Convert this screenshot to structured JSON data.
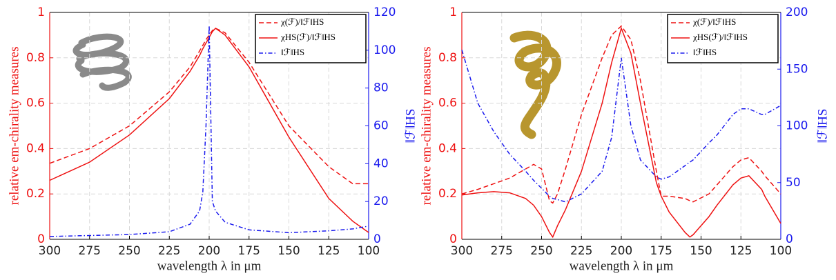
{
  "chart_data": [
    {
      "type": "line",
      "xlabel": "wavelength λ in μm",
      "ylabel": "relative em-chirality measures",
      "y2label": "‖ℱ‖HS",
      "x": [
        300,
        275,
        250,
        225,
        212,
        206,
        204,
        202,
        200,
        198,
        196,
        190,
        175,
        150,
        125,
        110,
        100
      ],
      "xlim": [
        300,
        100
      ],
      "xticks": [
        300,
        275,
        250,
        225,
        200,
        175,
        150,
        125,
        100
      ],
      "ylim": [
        0,
        1
      ],
      "yticks": [
        0,
        0.2,
        0.4,
        0.6,
        0.8,
        1
      ],
      "y2lim": [
        0,
        120
      ],
      "y2ticks": [
        0,
        20,
        40,
        60,
        80,
        100,
        120
      ],
      "grid": true,
      "legend": "upper right",
      "ycolor": "#ee1111",
      "y2color": "#1a1aee",
      "series": [
        {
          "name": "χ(ℱ)/‖ℱ‖HS",
          "color": "#ee1111",
          "style": "dashed",
          "values": [
            0.335,
            0.4,
            0.5,
            0.65,
            0.76,
            0.83,
            0.855,
            0.88,
            0.9,
            0.92,
            0.93,
            0.91,
            0.78,
            0.5,
            0.32,
            0.245,
            0.245
          ]
        },
        {
          "name": "χHS(ℱ)/‖ℱ‖HS",
          "color": "#ee1111",
          "style": "solid",
          "values": [
            0.26,
            0.34,
            0.46,
            0.62,
            0.74,
            0.81,
            0.84,
            0.865,
            0.89,
            0.915,
            0.93,
            0.9,
            0.76,
            0.45,
            0.18,
            0.08,
            0.03
          ]
        },
        {
          "name": "‖ℱ‖HS",
          "color": "#1a1aee",
          "style": "dashdot",
          "axis": "y2",
          "values": [
            1.5,
            2,
            2.5,
            4,
            8,
            15,
            25,
            60,
            113,
            20,
            15,
            9,
            5,
            3.5,
            4.5,
            5.5,
            7
          ]
        }
      ]
    },
    {
      "type": "line",
      "xlabel": "wavelength λ in μm",
      "ylabel": "relative em-chirality measures",
      "y2label": "‖ℱ‖HS",
      "x": [
        300,
        290,
        280,
        270,
        260,
        255,
        250,
        245,
        243,
        240,
        235,
        225,
        212,
        206,
        200,
        194,
        188,
        178,
        175,
        170,
        160,
        157,
        155,
        145,
        140,
        130,
        125,
        120,
        112,
        110,
        100
      ],
      "xlim": [
        300,
        100
      ],
      "xticks": [
        300,
        275,
        250,
        225,
        200,
        175,
        150,
        125,
        100
      ],
      "ylim": [
        0,
        1
      ],
      "yticks": [
        0,
        0.2,
        0.4,
        0.6,
        0.8,
        1
      ],
      "y2lim": [
        0,
        200
      ],
      "y2ticks": [
        0,
        50,
        100,
        150,
        200
      ],
      "grid": true,
      "legend": "upper right",
      "ycolor": "#ee1111",
      "y2color": "#1a1aee",
      "series": [
        {
          "name": "χ(ℱ)/‖ℱ‖HS",
          "color": "#ee1111",
          "style": "dashed",
          "values": [
            0.2,
            0.22,
            0.245,
            0.27,
            0.31,
            0.33,
            0.31,
            0.17,
            0.16,
            0.2,
            0.31,
            0.55,
            0.8,
            0.9,
            0.94,
            0.88,
            0.7,
            0.3,
            0.19,
            0.19,
            0.18,
            0.17,
            0.165,
            0.2,
            0.24,
            0.32,
            0.35,
            0.36,
            0.3,
            0.28,
            0.2
          ]
        },
        {
          "name": "χHS(ℱ)/‖ℱ‖HS",
          "color": "#ee1111",
          "style": "solid",
          "values": [
            0.195,
            0.205,
            0.21,
            0.205,
            0.18,
            0.15,
            0.1,
            0.03,
            0.01,
            0.06,
            0.13,
            0.3,
            0.6,
            0.78,
            0.93,
            0.82,
            0.6,
            0.25,
            0.19,
            0.12,
            0.03,
            0.01,
            0.02,
            0.1,
            0.15,
            0.24,
            0.27,
            0.28,
            0.22,
            0.19,
            0.07
          ]
        },
        {
          "name": "‖ℱ‖HS",
          "color": "#1a1aee",
          "style": "dashdot",
          "axis": "y2",
          "values": [
            167,
            120,
            95,
            75,
            60,
            52,
            45,
            38,
            36,
            35,
            33,
            40,
            60,
            90,
            160,
            100,
            70,
            55,
            53,
            55,
            65,
            68,
            70,
            85,
            92,
            110,
            115,
            115,
            110,
            110,
            118
          ]
        }
      ]
    }
  ]
}
